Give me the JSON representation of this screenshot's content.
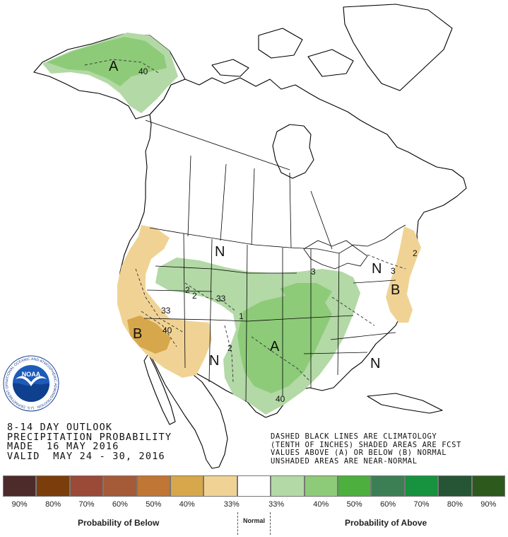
{
  "map": {
    "region_labels": [
      {
        "id": "alaska-above",
        "text": "A"
      },
      {
        "id": "plains-above",
        "text": "A"
      },
      {
        "id": "california-below",
        "text": "B"
      },
      {
        "id": "northeast-below",
        "text": "B"
      },
      {
        "id": "northern-plains-normal",
        "text": "N"
      },
      {
        "id": "southwest-normal",
        "text": "N"
      },
      {
        "id": "southeast-normal",
        "text": "N"
      },
      {
        "id": "great-lakes-normal",
        "text": "N"
      }
    ],
    "contour_labels": [
      {
        "id": "alaska-40",
        "text": "40"
      },
      {
        "id": "west-33",
        "text": "33"
      },
      {
        "id": "nevada-40",
        "text": "40"
      },
      {
        "id": "rockies-33",
        "text": "33"
      },
      {
        "id": "idaho-2",
        "text": "2"
      },
      {
        "id": "montana-2",
        "text": "2"
      },
      {
        "id": "newmexico-2",
        "text": "2"
      },
      {
        "id": "kansas-1",
        "text": "1"
      },
      {
        "id": "texas-40",
        "text": "40"
      },
      {
        "id": "greatlakes-3",
        "text": "3"
      },
      {
        "id": "eastcoast-3",
        "text": "3"
      },
      {
        "id": "northeast-2",
        "text": "2"
      }
    ],
    "colors": {
      "above_33_40": "#b3d9a6",
      "above_40_50": "#8dcb78",
      "below_33_40": "#f0d390",
      "below_40_50": "#d8a94a",
      "land": "#ffffff",
      "outline": "#000000"
    }
  },
  "title_block": {
    "line1": "8-14 DAY OUTLOOK",
    "line2": "PRECIPITATION PROBABILITY",
    "line3": "MADE  16 MAY 2016",
    "line4": "VALID  MAY 24 - 30, 2016"
  },
  "legend_note": {
    "line1": "DASHED BLACK LINES ARE CLIMATOLOGY",
    "line2": "(TENTH OF INCHES) SHADED AREAS ARE FCST",
    "line3": "VALUES ABOVE (A) OR BELOW (B) NORMAL",
    "line4": "UNSHADED AREAS ARE NEAR-NORMAL"
  },
  "legend": {
    "colors": [
      "#4d2b2b",
      "#7a3e0c",
      "#9a4a36",
      "#a55a38",
      "#c07634",
      "#d7a74b",
      "#f0d394",
      "#ffffff",
      "#b3d9a6",
      "#8dcb78",
      "#4caf3e",
      "#3d7f55",
      "#17923e",
      "#265535",
      "#2d5a1c"
    ],
    "ticks": [
      "90%",
      "80%",
      "70%",
      "60%",
      "50%",
      "40%",
      "33%",
      "33%",
      "40%",
      "50%",
      "60%",
      "70%",
      "80%",
      "90%"
    ],
    "below_title": "Probability of Below",
    "normal_title": "Normal",
    "above_title": "Probability of Above"
  },
  "logo": {
    "text": "NOAA",
    "ring_text": "NATIONAL OCEANIC AND ATMOSPHERIC ADMINISTRATION · U.S. DEPARTMENT OF COMMERCE",
    "icon": "noaa-seagull-logo"
  }
}
